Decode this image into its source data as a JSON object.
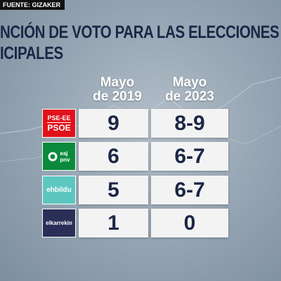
{
  "header": {
    "source": "FUENTE: GIZAKER",
    "title_lines": [
      "NCIÓN DE VOTO PARA LAS ELECCIONES",
      "ICIPALES"
    ]
  },
  "table": {
    "columns": [
      [
        "Mayo",
        "de 2019"
      ],
      [
        "Mayo",
        "de 2023"
      ]
    ],
    "rows": [
      {
        "logo": [
          "PSE-EE",
          "PSOE"
        ],
        "values": [
          "9",
          "8-9"
        ]
      },
      {
        "logo": [
          "eaj",
          "pnv"
        ],
        "values": [
          "6",
          "6-7"
        ]
      },
      {
        "logo": [
          "ehbildu"
        ],
        "values": [
          "5",
          "6-7"
        ]
      },
      {
        "logo": [
          "elkarrekin"
        ],
        "values": [
          "1",
          "0"
        ]
      }
    ]
  }
}
